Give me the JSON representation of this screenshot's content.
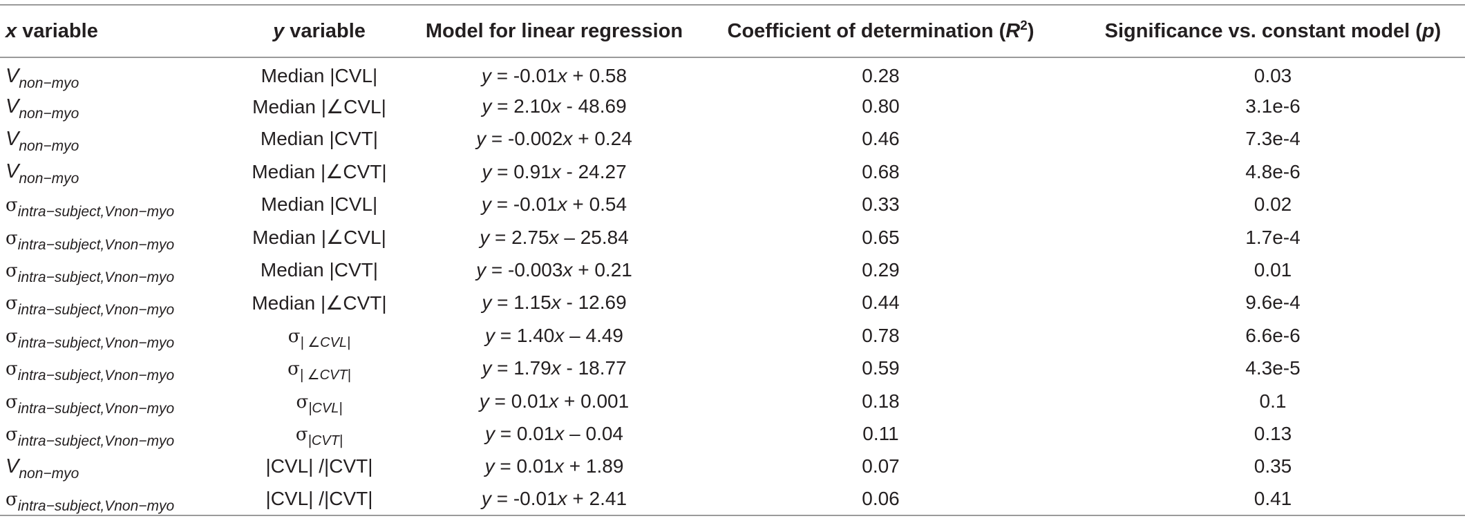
{
  "table": {
    "headers": [
      {
        "pre": "",
        "ital": "x",
        "post": " variable",
        "sup": "",
        "tail": ""
      },
      {
        "pre": "",
        "ital": "y",
        "post": " variable",
        "sup": "",
        "tail": ""
      },
      {
        "pre": "Model for linear regression",
        "ital": "",
        "post": "",
        "sup": "",
        "tail": ""
      },
      {
        "pre": "Coefficient of determination (",
        "ital": "R",
        "post": "",
        "sup": "2",
        "tail": ")"
      },
      {
        "pre": "Significance vs. constant model (",
        "ital": "p",
        "post": "",
        "sup": "",
        "tail": ")"
      }
    ],
    "rows": [
      {
        "x": {
          "kind": "V",
          "sym": "V",
          "sub": "non−myo"
        },
        "y": {
          "kind": "text",
          "text": "Median |CVL|"
        },
        "model": {
          "lhs": "y",
          "eq": " = -0.01",
          "var": "x",
          "rest": " + 0.58"
        },
        "r2": "0.28",
        "p": "0.03"
      },
      {
        "x": {
          "kind": "V",
          "sym": "V",
          "sub": "non−myo"
        },
        "y": {
          "kind": "text",
          "text": "Median |∠CVL|"
        },
        "model": {
          "lhs": "y",
          "eq": " = 2.10",
          "var": "x",
          "rest": " - 48.69"
        },
        "r2": "0.80",
        "p": "3.1e-6"
      },
      {
        "x": {
          "kind": "V",
          "sym": "V",
          "sub": "non−myo"
        },
        "y": {
          "kind": "text",
          "text": "Median |CVT|"
        },
        "model": {
          "lhs": "y",
          "eq": " = -0.002",
          "var": "x",
          "rest": " + 0.24"
        },
        "r2": "0.46",
        "p": "7.3e-4"
      },
      {
        "x": {
          "kind": "V",
          "sym": "V",
          "sub": "non−myo"
        },
        "y": {
          "kind": "text",
          "text": "Median |∠CVT|"
        },
        "model": {
          "lhs": "y",
          "eq": " = 0.91",
          "var": "x",
          "rest": " - 24.27"
        },
        "r2": "0.68",
        "p": "4.8e-6"
      },
      {
        "x": {
          "kind": "S",
          "sym": "σ",
          "sub": "intra−subject,Vnon−myo"
        },
        "y": {
          "kind": "text",
          "text": "Median |CVL|"
        },
        "model": {
          "lhs": "y",
          "eq": " = -0.01",
          "var": "x",
          "rest": " + 0.54"
        },
        "r2": "0.33",
        "p": "0.02"
      },
      {
        "x": {
          "kind": "S",
          "sym": "σ",
          "sub": "intra−subject,Vnon−myo"
        },
        "y": {
          "kind": "text",
          "text": "Median |∠CVL|"
        },
        "model": {
          "lhs": "y",
          "eq": " = 2.75",
          "var": "x",
          "rest": " – 25.84"
        },
        "r2": "0.65",
        "p": "1.7e-4"
      },
      {
        "x": {
          "kind": "S",
          "sym": "σ",
          "sub": "intra−subject,Vnon−myo"
        },
        "y": {
          "kind": "text",
          "text": "Median |CVT|"
        },
        "model": {
          "lhs": "y",
          "eq": " = -0.003",
          "var": "x",
          "rest": " + 0.21"
        },
        "r2": "0.29",
        "p": "0.01"
      },
      {
        "x": {
          "kind": "S",
          "sym": "σ",
          "sub": "intra−subject,Vnon−myo"
        },
        "y": {
          "kind": "text",
          "text": "Median |∠CVT|"
        },
        "model": {
          "lhs": "y",
          "eq": " = 1.15",
          "var": "x",
          "rest": " - 12.69"
        },
        "r2": "0.44",
        "p": "9.6e-4"
      },
      {
        "x": {
          "kind": "S",
          "sym": "σ",
          "sub": "intra−subject,Vnon−myo"
        },
        "y": {
          "kind": "sigma",
          "sym": "σ",
          "sub": "| ∠CVL|"
        },
        "model": {
          "lhs": "y",
          "eq": " = 1.40",
          "var": "x",
          "rest": " – 4.49"
        },
        "r2": "0.78",
        "p": "6.6e-6"
      },
      {
        "x": {
          "kind": "S",
          "sym": "σ",
          "sub": "intra−subject,Vnon−myo"
        },
        "y": {
          "kind": "sigma",
          "sym": "σ",
          "sub": "| ∠CVT|"
        },
        "model": {
          "lhs": "y",
          "eq": " = 1.79",
          "var": "x",
          "rest": " - 18.77"
        },
        "r2": "0.59",
        "p": "4.3e-5"
      },
      {
        "x": {
          "kind": "S",
          "sym": "σ",
          "sub": "intra−subject,Vnon−myo"
        },
        "y": {
          "kind": "sigma",
          "sym": "σ",
          "sub": "|CVL|"
        },
        "model": {
          "lhs": "y",
          "eq": " = 0.01",
          "var": "x",
          "rest": " + 0.001"
        },
        "r2": "0.18",
        "p": "0.1"
      },
      {
        "x": {
          "kind": "S",
          "sym": "σ",
          "sub": "intra−subject,Vnon−myo"
        },
        "y": {
          "kind": "sigma",
          "sym": "σ",
          "sub": "|CVT|"
        },
        "model": {
          "lhs": "y",
          "eq": " = 0.01",
          "var": "x",
          "rest": " – 0.04"
        },
        "r2": "0.11",
        "p": "0.13"
      },
      {
        "x": {
          "kind": "V",
          "sym": "V",
          "sub": "non−myo"
        },
        "y": {
          "kind": "text",
          "text": "|CVL| /|CVT|"
        },
        "model": {
          "lhs": "y",
          "eq": " = 0.01",
          "var": "x",
          "rest": " + 1.89"
        },
        "r2": "0.07",
        "p": "0.35"
      },
      {
        "x": {
          "kind": "S",
          "sym": "σ",
          "sub": "intra−subject,Vnon−myo"
        },
        "y": {
          "kind": "text",
          "text": "|CVL| /|CVT|"
        },
        "model": {
          "lhs": "y",
          "eq": " = -0.01",
          "var": "x",
          "rest": " + 2.41"
        },
        "r2": "0.06",
        "p": "0.41"
      }
    ]
  }
}
